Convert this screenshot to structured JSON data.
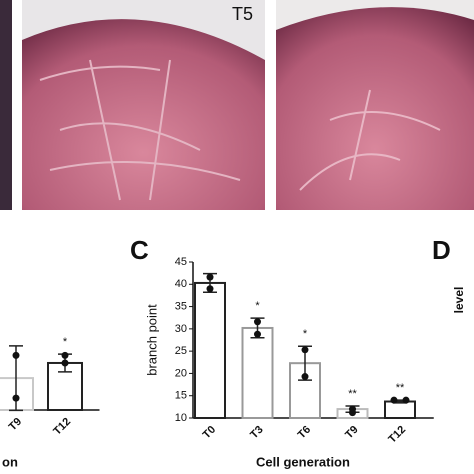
{
  "images": [
    {
      "label": "T5"
    }
  ],
  "panel_labels": [
    "C",
    "D"
  ],
  "right_axis_label": "level",
  "chart_data": [
    {
      "type": "bar",
      "x_label": "on",
      "categories": [
        "T9",
        "T12"
      ],
      "values": [
        9.7,
        14.3
      ],
      "errors": [
        9.8,
        2.7
      ],
      "points": [
        [
          16.6,
          3.6
        ],
        [
          16.6,
          14.3
        ]
      ],
      "annotations": [
        null,
        "*"
      ],
      "colors": [
        "#c8c8c8",
        "#222222"
      ],
      "ylim": [
        0,
        45
      ]
    },
    {
      "type": "bar",
      "y_label": "branch point",
      "x_label": "Cell generation",
      "categories": [
        "T0",
        "T3",
        "T6",
        "T9",
        "T12"
      ],
      "values": [
        40.3,
        30.2,
        22.3,
        12.0,
        13.7
      ],
      "errors": [
        2.1,
        2.2,
        3.8,
        0.7,
        0.3
      ],
      "points": [
        [
          39.0,
          41.6
        ],
        [
          28.8,
          31.6
        ],
        [
          19.3,
          25.3
        ],
        [
          11.2,
          12.0
        ],
        [
          14.0,
          14.0
        ]
      ],
      "annotations": [
        null,
        "*",
        "*",
        "**",
        "**"
      ],
      "colors": [
        "#222222",
        "#999999",
        "#999999",
        "#bbbbbb",
        "#222222"
      ],
      "ylim": [
        10,
        45
      ],
      "yticks": [
        10,
        15,
        20,
        25,
        30,
        35,
        40,
        45
      ]
    }
  ]
}
